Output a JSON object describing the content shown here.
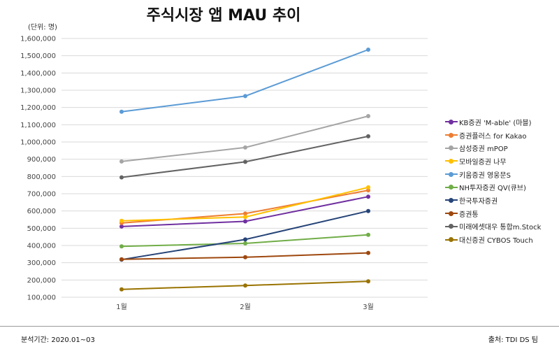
{
  "chart_data": {
    "type": "line",
    "title": "주식시장 앱 MAU 추이",
    "unit_label": "(단위: 명)",
    "categories": [
      "1월",
      "2월",
      "3월"
    ],
    "ylim": [
      100000,
      1600000
    ],
    "yticks": [
      100000,
      200000,
      300000,
      400000,
      500000,
      600000,
      700000,
      800000,
      900000,
      1000000,
      1100000,
      1200000,
      1300000,
      1400000,
      1500000,
      1600000
    ],
    "ytick_labels": [
      "100,000",
      "200,000",
      "300,000",
      "400,000",
      "500,000",
      "600,000",
      "700,000",
      "800,000",
      "900,000",
      "1,000,000",
      "1,100,000",
      "1,200,000",
      "1,300,000",
      "1,400,000",
      "1,500,000",
      "1,600,000"
    ],
    "grid": true,
    "legend_position": "right",
    "series": [
      {
        "name": "KB증권 'M-able' (마블)",
        "color": "#7030a0",
        "values": [
          510000,
          540000,
          683000
        ]
      },
      {
        "name": "증권플러스 for Kakao",
        "color": "#ed7d31",
        "values": [
          530000,
          585000,
          720000
        ]
      },
      {
        "name": "삼성증권 mPOP",
        "color": "#a5a5a5",
        "values": [
          887000,
          968000,
          1150000
        ]
      },
      {
        "name": "모바일증권 나무",
        "color": "#ffc000",
        "values": [
          543000,
          565000,
          737000
        ]
      },
      {
        "name": "키움증권 영웅문S",
        "color": "#5b9bd5",
        "values": [
          1175000,
          1266000,
          1535000
        ]
      },
      {
        "name": "NH투자증권 QV(큐브)",
        "color": "#70ad47",
        "values": [
          395000,
          412000,
          462000
        ]
      },
      {
        "name": "한국투자증권",
        "color": "#264478",
        "values": [
          318000,
          435000,
          600000
        ]
      },
      {
        "name": "증권통",
        "color": "#9e480e",
        "values": [
          320000,
          332000,
          357000
        ]
      },
      {
        "name": "미래에셋대우 통합m.Stock",
        "color": "#636363",
        "values": [
          795000,
          885000,
          1033000
        ]
      },
      {
        "name": "대신증권 CYBOS Touch",
        "color": "#997300",
        "values": [
          146000,
          168000,
          192000
        ]
      }
    ]
  },
  "footer": {
    "period": "분석기간: 2020.01~03",
    "source": "출처: TDI DS 팀"
  }
}
